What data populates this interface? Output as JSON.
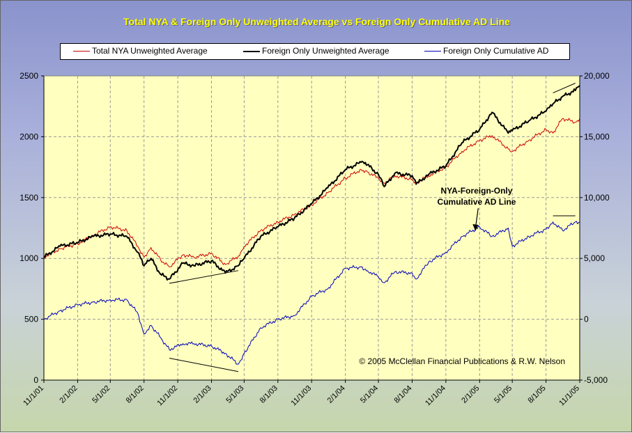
{
  "chart_data": {
    "type": "line",
    "title": "Total NYA & Foreign Only Unweighted Average vs Foreign Only Cumulative AD Line",
    "x_ticks": [
      "11/1/01",
      "2/1/02",
      "5/1/02",
      "8/1/02",
      "11/1/02",
      "2/1/03",
      "5/1/03",
      "8/1/03",
      "11/1/03",
      "2/1/04",
      "5/1/04",
      "8/1/04",
      "11/1/04",
      "2/1/05",
      "5/1/05",
      "8/1/05",
      "11/1/05"
    ],
    "y_left_ticks": [
      "0",
      "500",
      "1000",
      "1500",
      "2000",
      "2500"
    ],
    "y_right_ticks": [
      "-5,000",
      "0",
      "5,000",
      "10,000",
      "15,000",
      "20,000"
    ],
    "ylim_left": [
      0,
      2500
    ],
    "ylim_right": [
      -5000,
      20000
    ],
    "grid": true,
    "legend_position": "top",
    "series": [
      {
        "name": "Total NYA Unweighted Average",
        "axis": "left",
        "color": "#cc0000",
        "x": [
          "11/1/01",
          "12/15/01",
          "2/1/02",
          "3/15/02",
          "5/1/02",
          "6/15/02",
          "7/15/02",
          "8/1/02",
          "8/20/02",
          "9/15/02",
          "10/9/02",
          "11/15/02",
          "12/15/02",
          "2/1/03",
          "3/11/03",
          "4/15/03",
          "5/1/03",
          "6/15/03",
          "8/1/03",
          "9/15/03",
          "11/1/03",
          "12/15/03",
          "2/1/04",
          "3/15/04",
          "4/1/04",
          "5/1/04",
          "5/17/04",
          "6/15/04",
          "8/1/04",
          "8/12/04",
          "9/15/04",
          "11/1/04",
          "12/15/04",
          "2/1/05",
          "3/7/05",
          "4/20/05",
          "5/1/05",
          "6/15/05",
          "8/1/05",
          "8/20/05",
          "9/15/05",
          "10/20/05",
          "11/1/05"
        ],
        "values": [
          1010,
          1080,
          1120,
          1190,
          1260,
          1230,
          1100,
          1010,
          1090,
          990,
          930,
          1030,
          1010,
          1040,
          950,
          1020,
          1100,
          1230,
          1300,
          1360,
          1440,
          1540,
          1660,
          1730,
          1710,
          1660,
          1620,
          1680,
          1650,
          1620,
          1680,
          1750,
          1880,
          1970,
          2010,
          1900,
          1880,
          1970,
          2060,
          2030,
          2150,
          2120,
          2150
        ]
      },
      {
        "name": "Foreign Only Unweighted Average",
        "axis": "left",
        "color": "#000000",
        "x": [
          "11/1/01",
          "12/15/01",
          "2/1/02",
          "3/15/02",
          "5/1/02",
          "6/15/02",
          "7/15/02",
          "8/1/02",
          "8/20/02",
          "9/15/02",
          "10/9/02",
          "11/15/02",
          "12/15/02",
          "2/1/03",
          "3/11/03",
          "4/15/03",
          "5/1/03",
          "6/15/03",
          "8/1/03",
          "9/15/03",
          "11/1/03",
          "12/15/03",
          "2/1/04",
          "3/15/04",
          "4/1/04",
          "5/1/04",
          "5/17/04",
          "6/15/04",
          "8/1/04",
          "8/12/04",
          "9/15/04",
          "11/1/04",
          "12/15/04",
          "2/1/05",
          "3/7/05",
          "4/20/05",
          "5/1/05",
          "6/15/05",
          "8/1/05",
          "8/20/05",
          "9/15/05",
          "10/20/05",
          "11/1/05"
        ],
        "values": [
          1010,
          1100,
          1130,
          1180,
          1200,
          1180,
          1050,
          940,
          1000,
          870,
          830,
          960,
          940,
          980,
          880,
          940,
          1000,
          1180,
          1260,
          1330,
          1450,
          1580,
          1730,
          1790,
          1770,
          1690,
          1590,
          1700,
          1680,
          1610,
          1690,
          1760,
          1950,
          2060,
          2200,
          2030,
          2050,
          2130,
          2210,
          2270,
          2330,
          2380,
          2420
        ]
      },
      {
        "name": "Foreign Only Cumulative AD",
        "axis": "right",
        "color": "#0000bb",
        "x": [
          "11/1/01",
          "12/15/01",
          "2/1/02",
          "3/15/02",
          "5/1/02",
          "6/15/02",
          "7/15/02",
          "8/1/02",
          "8/20/02",
          "9/15/02",
          "10/9/02",
          "11/15/02",
          "12/15/02",
          "2/1/03",
          "3/11/03",
          "4/15/03",
          "5/1/03",
          "6/15/03",
          "8/1/03",
          "9/15/03",
          "11/1/03",
          "12/15/03",
          "2/1/04",
          "3/15/04",
          "4/1/04",
          "5/1/04",
          "5/17/04",
          "6/15/04",
          "8/1/04",
          "8/12/04",
          "9/15/04",
          "11/1/04",
          "12/15/04",
          "2/1/05",
          "3/7/05",
          "4/20/05",
          "5/1/05",
          "6/15/05",
          "8/1/05",
          "8/20/05",
          "9/15/05",
          "10/20/05",
          "11/1/05"
        ],
        "values": [
          0,
          700,
          1200,
          1400,
          1600,
          1600,
          500,
          -1200,
          -500,
          -1500,
          -2500,
          -2000,
          -2000,
          -2200,
          -2800,
          -3700,
          -2800,
          -700,
          0,
          300,
          1900,
          2500,
          4200,
          4300,
          4000,
          3500,
          3000,
          3900,
          3800,
          3300,
          4700,
          5500,
          6800,
          7600,
          6800,
          7500,
          6000,
          6800,
          7400,
          8000,
          7300,
          8000,
          8000
        ]
      }
    ],
    "annotations": [
      {
        "text": "NYA-Foreign-Only",
        "arrow_to": "2/1/05"
      },
      {
        "text": "Cumulative AD Line"
      },
      {
        "text": "© 2005 McClellan Financial Publications & R.W. Nelson"
      }
    ],
    "trendlines": [
      {
        "axis": "left",
        "x": [
          "10/9/02",
          "4/15/03"
        ],
        "values": [
          795,
          900
        ]
      },
      {
        "axis": "right",
        "x": [
          "10/9/02",
          "4/15/03"
        ],
        "values": [
          -3200,
          -4300
        ]
      },
      {
        "axis": "left",
        "x": [
          "8/20/05",
          "10/20/05"
        ],
        "values": [
          2360,
          2440
        ]
      },
      {
        "axis": "right",
        "x": [
          "8/20/05",
          "10/20/05"
        ],
        "values": [
          8500,
          8500
        ]
      }
    ]
  }
}
